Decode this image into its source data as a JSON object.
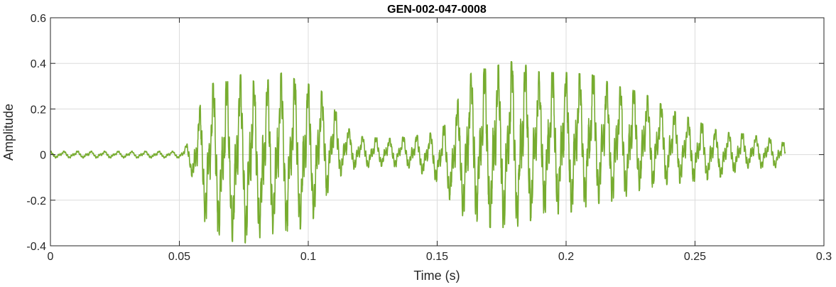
{
  "chart_data": {
    "type": "line",
    "title": "GEN-002-047-0008",
    "xlabel": "Time (s)",
    "ylabel": "Amplitude",
    "xlim": [
      0,
      0.3
    ],
    "ylim": [
      -0.4,
      0.6
    ],
    "xticks": [
      0,
      0.05,
      0.1,
      0.15,
      0.2,
      0.25,
      0.3
    ],
    "xtick_labels": [
      "0",
      "0.05",
      "0.1",
      "0.15",
      "0.2",
      "0.25",
      "0.3"
    ],
    "yticks": [
      -0.4,
      -0.2,
      0,
      0.2,
      0.4,
      0.6
    ],
    "ytick_labels": [
      "-0.4",
      "-0.2",
      "0",
      "0.2",
      "0.4",
      "0.6"
    ],
    "grid": true,
    "color": "#77AC30",
    "series": [
      {
        "x_start": 0,
        "x_end": 0.285,
        "envelope_time": [
          0,
          0.05,
          0.052,
          0.055,
          0.06,
          0.065,
          0.07,
          0.075,
          0.08,
          0.085,
          0.09,
          0.095,
          0.1,
          0.105,
          0.11,
          0.115,
          0.12,
          0.13,
          0.14,
          0.15,
          0.155,
          0.16,
          0.165,
          0.17,
          0.175,
          0.18,
          0.185,
          0.19,
          0.195,
          0.2,
          0.21,
          0.22,
          0.23,
          0.24,
          0.25,
          0.26,
          0.27,
          0.28,
          0.285
        ],
        "envelope_max": [
          0.015,
          0.015,
          0.03,
          0.08,
          0.3,
          0.32,
          0.32,
          0.36,
          0.31,
          0.33,
          0.36,
          0.33,
          0.31,
          0.28,
          0.2,
          0.12,
          0.08,
          0.07,
          0.08,
          0.1,
          0.15,
          0.3,
          0.39,
          0.37,
          0.4,
          0.41,
          0.39,
          0.36,
          0.36,
          0.36,
          0.35,
          0.3,
          0.27,
          0.2,
          0.15,
          0.1,
          0.09,
          0.07,
          0.05
        ],
        "envelope_min": [
          -0.015,
          -0.015,
          -0.02,
          -0.1,
          -0.3,
          -0.35,
          -0.38,
          -0.39,
          -0.37,
          -0.35,
          -0.34,
          -0.33,
          -0.32,
          -0.22,
          -0.12,
          -0.07,
          -0.06,
          -0.05,
          -0.06,
          -0.12,
          -0.2,
          -0.27,
          -0.29,
          -0.32,
          -0.32,
          -0.32,
          -0.3,
          -0.26,
          -0.26,
          -0.26,
          -0.22,
          -0.2,
          -0.15,
          -0.13,
          -0.12,
          -0.1,
          -0.06,
          -0.06,
          -0.05
        ]
      }
    ]
  }
}
